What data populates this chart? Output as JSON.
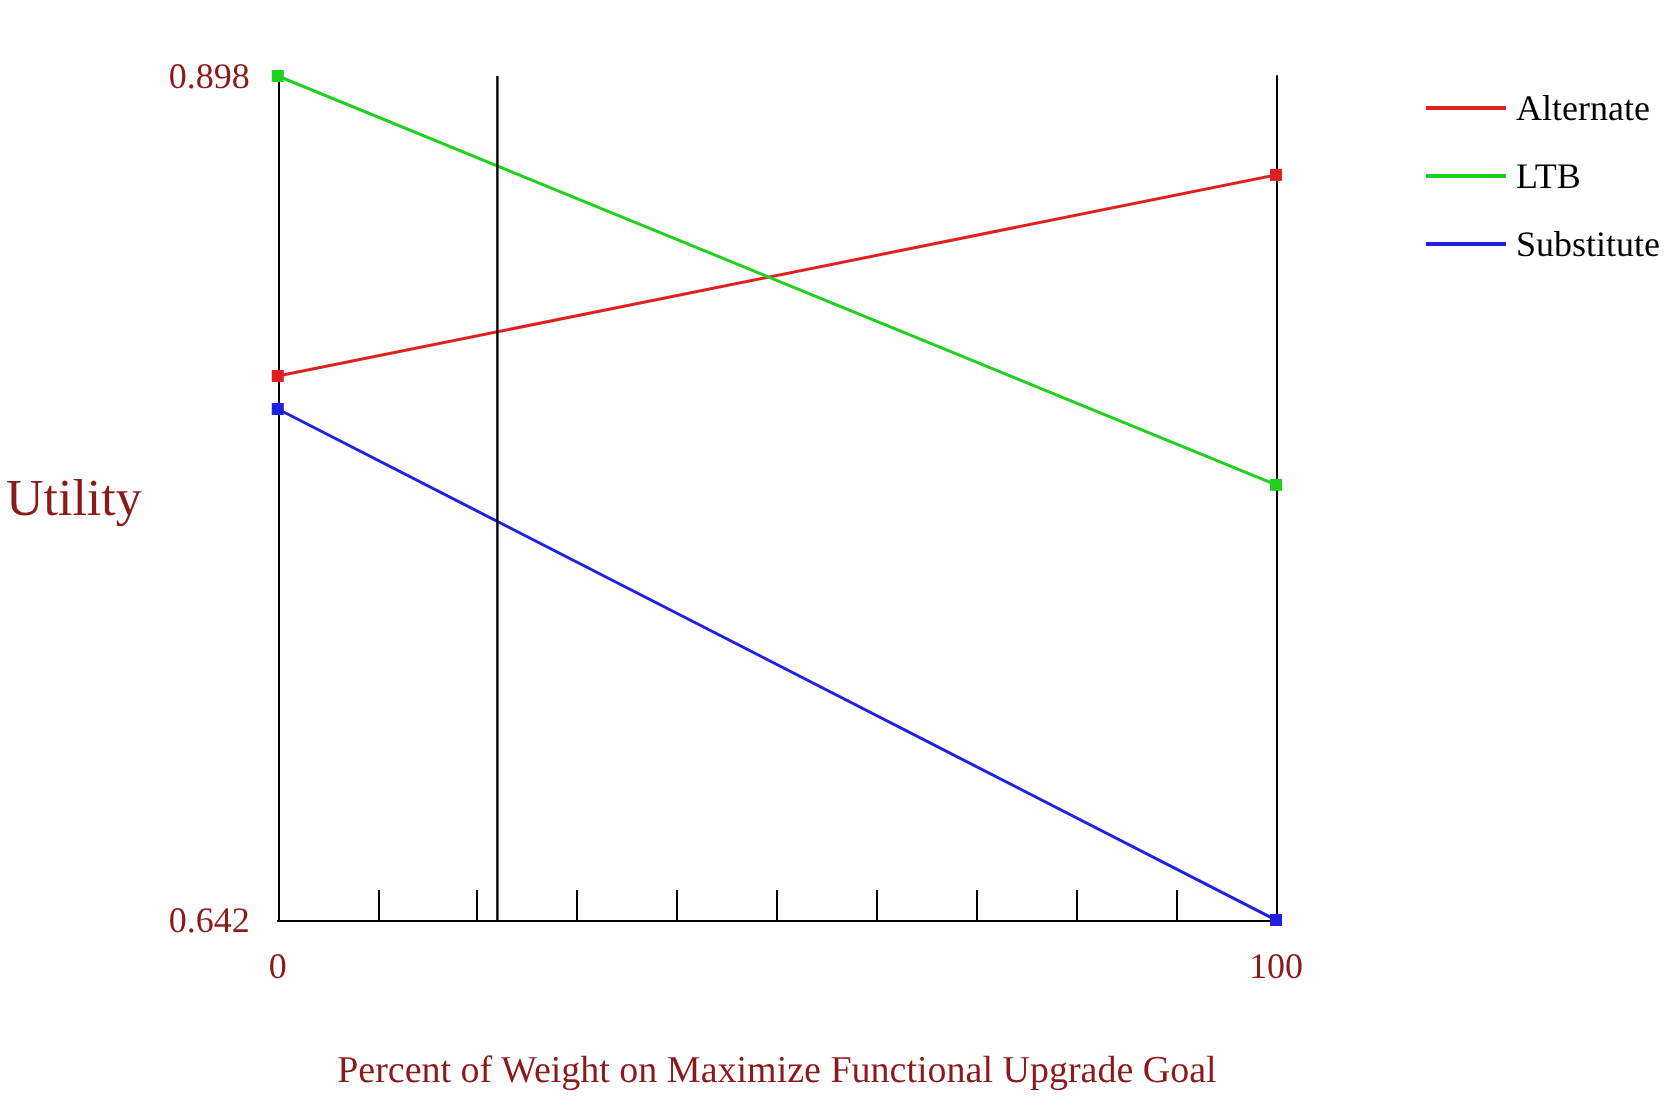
{
  "chart_data": {
    "type": "line",
    "xlabel": "Percent of Weight on Maximize Functional Upgrade Goal",
    "ylabel": "Utility",
    "x": [
      0,
      100
    ],
    "series": [
      {
        "name": "Alternate",
        "color": "#e02020",
        "values": [
          0.807,
          0.868
        ]
      },
      {
        "name": "LTB",
        "color": "#20d020",
        "values": [
          0.898,
          0.774
        ]
      },
      {
        "name": "Substitute",
        "color": "#2020e0",
        "values": [
          0.797,
          0.642
        ]
      }
    ],
    "xlim": [
      0,
      100
    ],
    "xticks": [
      0,
      {
        "value": 10,
        "label": null
      },
      {
        "value": 20,
        "label": null
      },
      {
        "value": 30,
        "label": null
      },
      {
        "value": 40,
        "label": null
      },
      {
        "value": 50,
        "label": null
      },
      {
        "value": 60,
        "label": null
      },
      {
        "value": 70,
        "label": null
      },
      {
        "value": 80,
        "label": null
      },
      {
        "value": 90,
        "label": null
      },
      100
    ],
    "ylim": [
      0.642,
      0.898
    ],
    "yticks": [
      0.642,
      0.898
    ],
    "ref_lines": [
      {
        "axis": "x",
        "value": 22,
        "color": "#000000"
      }
    ],
    "marker": "square",
    "line_style": "solid",
    "legend": "top right",
    "grid": false
  }
}
